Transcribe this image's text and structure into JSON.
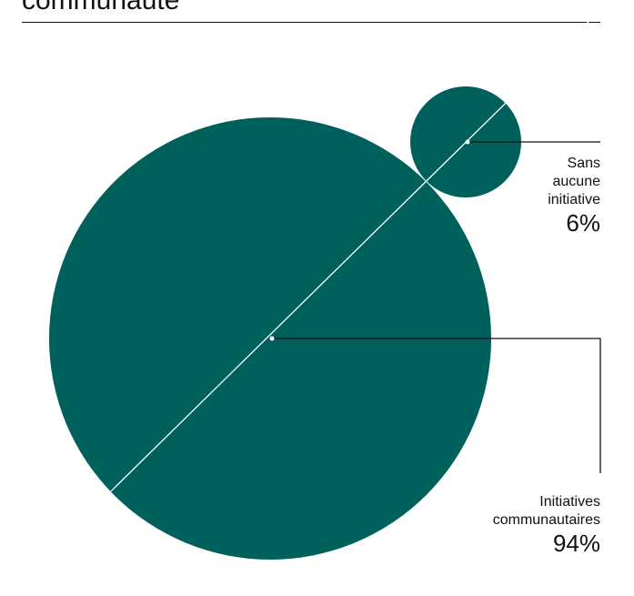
{
  "chart_data": {
    "type": "bubble",
    "title": "communauté",
    "colors": {
      "bubble": "#00615c",
      "ink": "#111111",
      "marker": "#ffffff"
    },
    "segments": [
      {
        "name_lines": [
          "Initiatives",
          "communautaires"
        ],
        "value": 94,
        "value_label": "94%"
      },
      {
        "name_lines": [
          "Sans",
          "aucune",
          "initiative"
        ],
        "value": 6,
        "value_label": "6%"
      }
    ]
  }
}
